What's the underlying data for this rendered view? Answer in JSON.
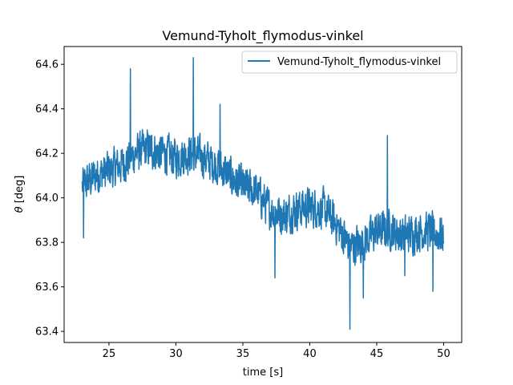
{
  "chart_data": {
    "type": "line",
    "title": "Vemund-Tyholt_flymodus-vinkel",
    "xlabel": "time [s]",
    "ylabel_prefix": "θ",
    "ylabel_suffix": " [deg]",
    "xlim": [
      21.65,
      51.35
    ],
    "ylim": [
      63.35,
      64.68
    ],
    "xticks": [
      25,
      30,
      35,
      40,
      45,
      50
    ],
    "yticks": [
      63.4,
      63.6,
      63.8,
      64.0,
      64.2,
      64.4,
      64.6
    ],
    "ytick_labels": [
      "63.4",
      "63.6",
      "63.8",
      "64.0",
      "64.2",
      "64.4",
      "64.6"
    ],
    "xtick_labels": [
      "25",
      "30",
      "35",
      "40",
      "45",
      "50"
    ],
    "grid": false,
    "legend_position": "top-right",
    "series": [
      {
        "name": "Vemund-Tyholt_flymodus-vinkel",
        "color": "#1f77b4",
        "x_start": 23.0,
        "x_end": 50.0,
        "anchors": [
          [
            23.0,
            64.05
          ],
          [
            24.0,
            64.1
          ],
          [
            25.0,
            64.12
          ],
          [
            26.0,
            64.15
          ],
          [
            27.0,
            64.2
          ],
          [
            28.0,
            64.22
          ],
          [
            29.0,
            64.2
          ],
          [
            30.0,
            64.18
          ],
          [
            31.0,
            64.2
          ],
          [
            32.0,
            64.18
          ],
          [
            33.0,
            64.15
          ],
          [
            34.0,
            64.1
          ],
          [
            35.0,
            64.05
          ],
          [
            36.0,
            64.03
          ],
          [
            37.0,
            63.95
          ],
          [
            38.0,
            63.92
          ],
          [
            39.0,
            63.95
          ],
          [
            40.0,
            63.96
          ],
          [
            41.0,
            63.95
          ],
          [
            42.0,
            63.88
          ],
          [
            43.0,
            63.78
          ],
          [
            44.0,
            63.8
          ],
          [
            45.0,
            63.85
          ],
          [
            46.0,
            63.86
          ],
          [
            47.0,
            63.83
          ],
          [
            48.0,
            63.85
          ],
          [
            49.0,
            63.85
          ],
          [
            50.0,
            63.83
          ]
        ],
        "notable_points": [
          [
            23.1,
            63.82
          ],
          [
            26.6,
            64.58
          ],
          [
            31.3,
            64.63
          ],
          [
            33.3,
            64.42
          ],
          [
            37.4,
            63.64
          ],
          [
            43.0,
            63.41
          ],
          [
            44.0,
            63.55
          ],
          [
            45.8,
            64.28
          ],
          [
            47.1,
            63.65
          ],
          [
            49.2,
            63.58
          ]
        ],
        "noise_amplitude": 0.12
      }
    ]
  }
}
